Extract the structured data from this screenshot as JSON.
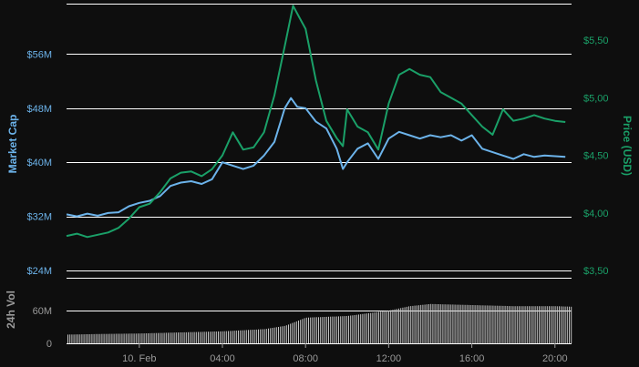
{
  "colors": {
    "background": "#0e0e0e",
    "grid": "#ffffff",
    "market_cap": "#6cb3ea",
    "price": "#1aa068",
    "volume": "#c8c8c8",
    "axis_text": "#9a9a9a"
  },
  "chart_data": [
    {
      "type": "line",
      "yaxis_left": {
        "label": "Market Cap",
        "ticks": [
          "$24M",
          "$32M",
          "$40M",
          "$48M",
          "$56M"
        ],
        "tick_values": [
          24,
          32,
          40,
          48,
          56
        ],
        "range": [
          24,
          64
        ]
      },
      "yaxis_right": {
        "label": "Price (USD)",
        "ticks": [
          "$3,50",
          "$4,00",
          "$4,50",
          "$5,00",
          "$5,50"
        ],
        "tick_values": [
          3.5,
          4.0,
          4.5,
          5.0,
          5.5
        ],
        "range": [
          3.5,
          5.85
        ]
      },
      "xaxis": {
        "ticks": [
          "10. Feb",
          "04:00",
          "08:00",
          "12:00",
          "16:00",
          "20:00"
        ],
        "tick_hours": [
          0,
          4,
          8,
          12,
          16,
          20
        ],
        "range_hours": [
          -3.5,
          20.8
        ]
      },
      "grid": true,
      "series": [
        {
          "name": "Market Cap",
          "axis": "left",
          "x": [
            -3.5,
            -3,
            -2.5,
            -2,
            -1.5,
            -1,
            -0.5,
            0,
            0.5,
            1,
            1.5,
            2,
            2.5,
            3,
            3.5,
            4,
            4.5,
            5,
            5.5,
            6,
            6.5,
            7,
            7.3,
            7.6,
            8,
            8.5,
            9,
            9.5,
            9.8,
            10,
            10.5,
            11,
            11.5,
            12,
            12.5,
            13,
            13.5,
            14,
            14.5,
            15,
            15.5,
            16,
            16.5,
            17,
            17.5,
            18,
            18.5,
            19,
            19.5,
            20,
            20.5
          ],
          "values": [
            32.3,
            32.0,
            32.4,
            32.1,
            32.5,
            32.6,
            33.5,
            34.0,
            34.3,
            35.0,
            36.5,
            37.0,
            37.2,
            36.8,
            37.5,
            40.0,
            39.5,
            39.0,
            39.5,
            41.0,
            43.0,
            48.0,
            49.5,
            48.2,
            48.0,
            46.0,
            45.0,
            42.0,
            39.0,
            40.0,
            42.0,
            42.8,
            40.5,
            43.5,
            44.5,
            44.0,
            43.5,
            44.0,
            43.7,
            44.0,
            43.2,
            44.0,
            42.0,
            41.5,
            41.0,
            40.5,
            41.2,
            40.8,
            41.0,
            40.9,
            40.8
          ]
        },
        {
          "name": "Price (USD)",
          "axis": "right",
          "x": [
            -3.5,
            -3,
            -2.5,
            -2,
            -1.5,
            -1,
            -0.5,
            0,
            0.5,
            1,
            1.5,
            2,
            2.5,
            3,
            3.5,
            4,
            4.5,
            5,
            5.5,
            6,
            6.5,
            7,
            7.4,
            7.7,
            8,
            8.5,
            9,
            9.5,
            9.8,
            10,
            10.5,
            11,
            11.5,
            12,
            12.5,
            13,
            13.5,
            14,
            14.5,
            15,
            15.5,
            16,
            16.5,
            17,
            17.5,
            18,
            18.5,
            19,
            19.5,
            20,
            20.5
          ],
          "values": [
            3.8,
            3.82,
            3.79,
            3.81,
            3.83,
            3.87,
            3.95,
            4.05,
            4.08,
            4.18,
            4.3,
            4.35,
            4.36,
            4.32,
            4.38,
            4.5,
            4.7,
            4.55,
            4.57,
            4.7,
            5.02,
            5.45,
            5.8,
            5.7,
            5.6,
            5.15,
            4.8,
            4.65,
            4.58,
            4.9,
            4.75,
            4.7,
            4.55,
            4.95,
            5.2,
            5.25,
            5.2,
            5.18,
            5.05,
            5.0,
            4.95,
            4.85,
            4.75,
            4.68,
            4.9,
            4.8,
            4.82,
            4.85,
            4.82,
            4.8,
            4.79
          ]
        }
      ]
    },
    {
      "type": "bar",
      "yaxis": {
        "label": "24h Vol",
        "ticks": [
          "0",
          "60M"
        ],
        "tick_values": [
          0,
          60
        ],
        "range": [
          0,
          120
        ]
      },
      "series": [
        {
          "name": "24h Vol",
          "x": [
            -3.5,
            -2,
            0,
            2,
            4,
            6,
            7,
            8,
            10,
            11,
            12,
            13,
            14,
            16,
            18,
            20,
            20.8
          ],
          "values": [
            16,
            17,
            18,
            20,
            22,
            26,
            32,
            47,
            50,
            55,
            60,
            68,
            72,
            70,
            68,
            68,
            67
          ]
        }
      ]
    }
  ]
}
